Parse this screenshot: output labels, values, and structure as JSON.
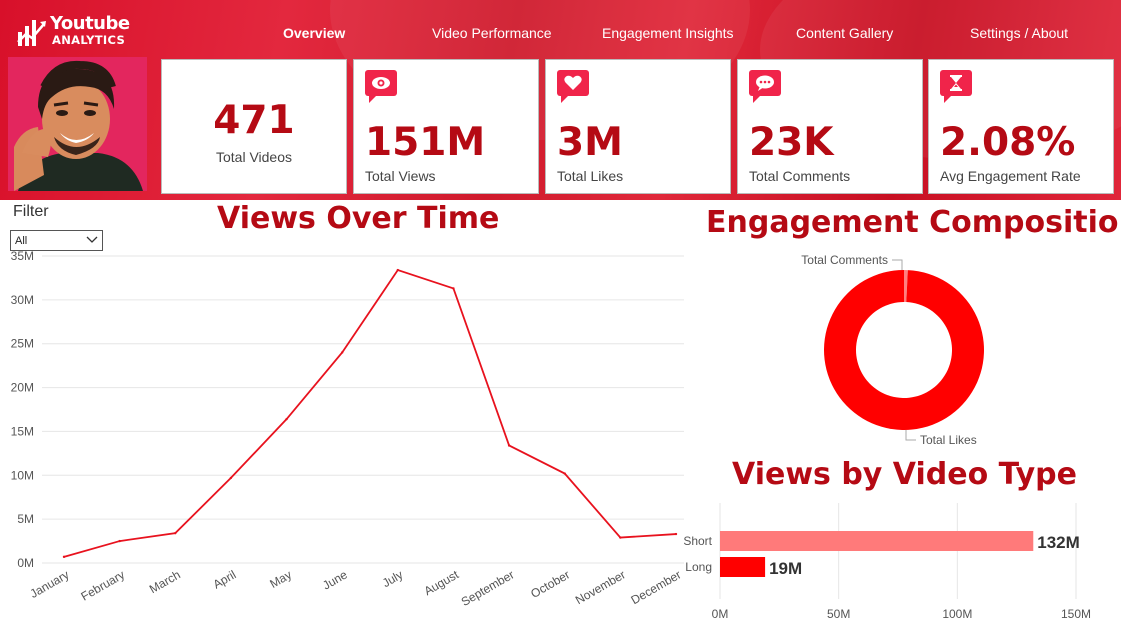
{
  "app": {
    "logo_line1": "Youtube",
    "logo_line2": "ANALYTICS"
  },
  "nav": {
    "items": [
      {
        "label": "Overview",
        "active": true
      },
      {
        "label": "Video Performance",
        "active": false
      },
      {
        "label": "Engagement Insights",
        "active": false
      },
      {
        "label": "Content Gallery",
        "active": false
      },
      {
        "label": "Settings / About",
        "active": false
      }
    ]
  },
  "kpis": [
    {
      "value": "471",
      "label": "Total Videos",
      "icon": "video-count-icon"
    },
    {
      "value": "151M",
      "label": "Total Views",
      "icon": "eye-icon"
    },
    {
      "value": "3M",
      "label": "Total Likes",
      "icon": "heart-icon"
    },
    {
      "value": "23K",
      "label": "Total Comments",
      "icon": "comment-icon"
    },
    {
      "value": "2.08%",
      "label": "Avg Engagement Rate",
      "icon": "hourglass-icon"
    }
  ],
  "filter": {
    "title": "Filter",
    "selected": "All"
  },
  "colors": {
    "brand_red": "#e0263a",
    "title_red": "#b50a14",
    "line_red": "#e8121e",
    "pie_red": "#ff0000",
    "short_bar": "#ff7a7a",
    "long_bar": "#ff0000"
  },
  "chart_data": [
    {
      "type": "line",
      "title": "Views Over Time",
      "categories": [
        "January",
        "February",
        "March",
        "April",
        "May",
        "June",
        "July",
        "August",
        "September",
        "October",
        "November",
        "December"
      ],
      "values": [
        0.7,
        2.5,
        3.4,
        9.7,
        16.4,
        24.0,
        33.4,
        31.3,
        13.4,
        10.2,
        2.9,
        3.3
      ],
      "y_ticks": [
        "0M",
        "5M",
        "10M",
        "15M",
        "20M",
        "25M",
        "30M",
        "35M"
      ],
      "ylim": [
        0,
        35
      ],
      "grid": true
    },
    {
      "type": "pie",
      "title": "Engagement Composition",
      "labels": [
        "Total Comments",
        "Total Likes"
      ],
      "values": [
        23000,
        3000000
      ],
      "donut": true
    },
    {
      "type": "bar",
      "orientation": "horizontal",
      "title": "Views by Video Type",
      "categories": [
        "Short",
        "Long"
      ],
      "values": [
        132,
        19
      ],
      "data_labels": [
        "132M",
        "19M"
      ],
      "x_ticks": [
        "0M",
        "50M",
        "100M",
        "150M"
      ],
      "xlim": [
        0,
        150
      ],
      "grid": true
    }
  ]
}
